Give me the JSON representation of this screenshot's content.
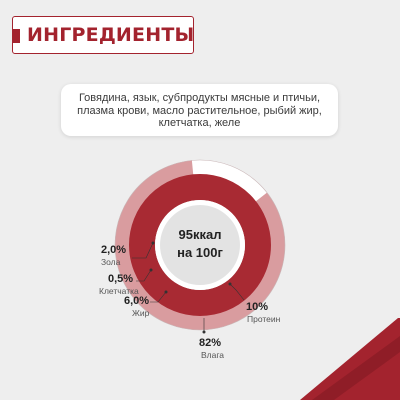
{
  "header": {
    "title": "ИНГРЕДИЕНТЫ"
  },
  "ingredients": {
    "text": "Говядина, язык, субпродукты мясные и птичьи, плазма крови, масло растительное, рыбий жир, клетчатка, желе"
  },
  "center": {
    "line1": "95ккал",
    "line2": "на 100г"
  },
  "composition": [
    {
      "pct": "2,0%",
      "name": "Зола",
      "value": 2.0
    },
    {
      "pct": "0,5%",
      "name": "Клетчатка",
      "value": 0.5
    },
    {
      "pct": "6,0%",
      "name": "Жир",
      "value": 6.0
    },
    {
      "pct": "10%",
      "name": "Протеин",
      "value": 10
    },
    {
      "pct": "82%",
      "name": "Влага",
      "value": 82
    }
  ],
  "colors": {
    "brand": "#a3232e",
    "ring_light": "#d99c9f",
    "ring_dark": "#a82a33",
    "background": "#eeeeee"
  },
  "icons": {
    "header_tab": "corner-tab-decor",
    "bottom_right": "red-diagonal-decor"
  }
}
